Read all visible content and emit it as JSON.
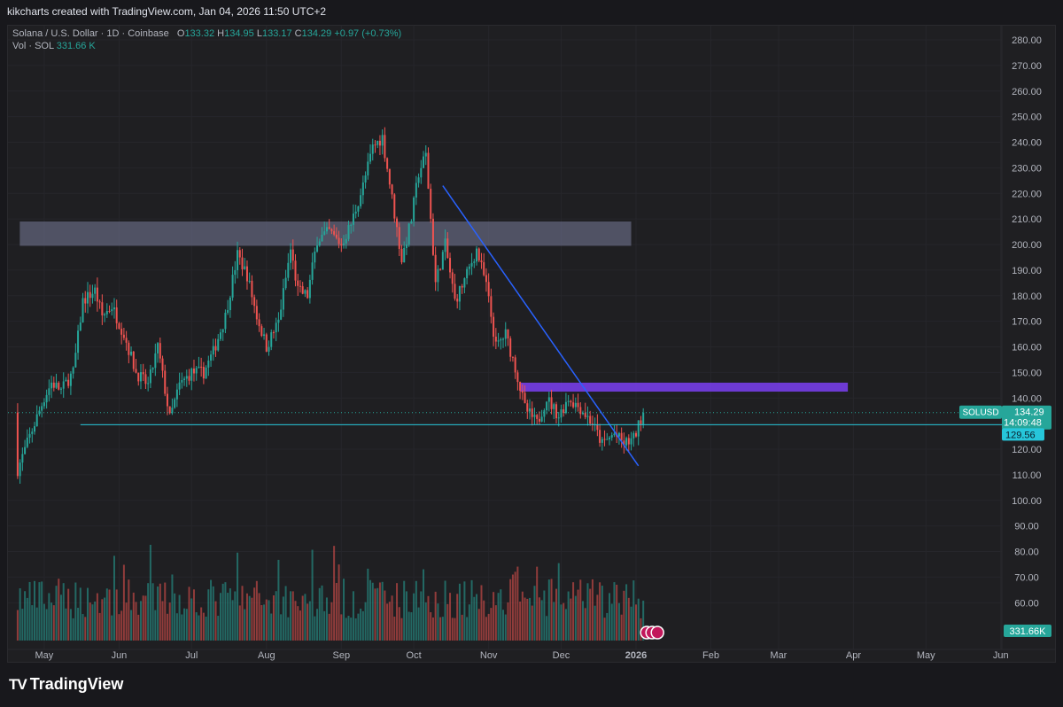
{
  "header": {
    "attribution": "kikcharts created with TradingView.com, Jan 04, 2026 11:50 UTC+2"
  },
  "legend": {
    "symbol": "Solana / U.S. Dollar · 1D · Coinbase",
    "open_label": "O",
    "open": "133.32",
    "high_label": "H",
    "high": "134.95",
    "low_label": "L",
    "low": "133.17",
    "close_label": "C",
    "close": "134.29",
    "change": "+0.97 (+0.73%)",
    "vol_label": "Vol · SOL",
    "vol_value": "331.66 K"
  },
  "footer": {
    "brand": "TradingView",
    "logo": "TV"
  },
  "chart_data": {
    "type": "candlestick",
    "symbol": "SOLUSD",
    "exchange": "Coinbase",
    "interval": "1D",
    "ylim": [
      50,
      285
    ],
    "y_ticks": [
      "280.00",
      "270.00",
      "260.00",
      "250.00",
      "240.00",
      "230.00",
      "220.00",
      "210.00",
      "200.00",
      "190.00",
      "180.00",
      "170.00",
      "160.00",
      "150.00",
      "140.00",
      "130.00",
      "120.00",
      "110.00",
      "100.00",
      "90.00",
      "80.00",
      "70.00",
      "60.00"
    ],
    "x_ticks": [
      "May",
      "Jun",
      "Jul",
      "Aug",
      "Sep",
      "Oct",
      "Nov",
      "Dec",
      "2026",
      "Feb",
      "Mar",
      "Apr",
      "May",
      "Jun"
    ],
    "price_path": [
      [
        "Apr 20",
        112
      ],
      [
        "Apr 25",
        125
      ],
      [
        "May 1",
        140
      ],
      [
        "May 4",
        146
      ],
      [
        "May 8",
        143
      ],
      [
        "May 13",
        150
      ],
      [
        "May 17",
        178
      ],
      [
        "May 22",
        182
      ],
      [
        "May 25",
        172
      ],
      [
        "May 29",
        176
      ],
      [
        "Jun 3",
        165
      ],
      [
        "Jun 8",
        150
      ],
      [
        "Jun 13",
        145
      ],
      [
        "Jun 17",
        160
      ],
      [
        "Jun 22",
        132
      ],
      [
        "Jun 26",
        145
      ],
      [
        "Jul 1",
        150
      ],
      [
        "Jul 6",
        150
      ],
      [
        "Jul 10",
        158
      ],
      [
        "Jul 15",
        172
      ],
      [
        "Jul 20",
        196
      ],
      [
        "Jul 24",
        188
      ],
      [
        "Jul 28",
        172
      ],
      [
        "Aug 1",
        160
      ],
      [
        "Aug 6",
        170
      ],
      [
        "Aug 11",
        198
      ],
      [
        "Aug 14",
        182
      ],
      [
        "Aug 18",
        180
      ],
      [
        "Aug 22",
        202
      ],
      [
        "Aug 27",
        205
      ],
      [
        "Sep 1",
        200
      ],
      [
        "Sep 5",
        208
      ],
      [
        "Sep 10",
        223
      ],
      [
        "Sep 14",
        238
      ],
      [
        "Sep 18",
        242
      ],
      [
        "Sep 22",
        218
      ],
      [
        "Sep 26",
        194
      ],
      [
        "Sep 30",
        210
      ],
      [
        "Oct 3",
        228
      ],
      [
        "Oct 6",
        235
      ],
      [
        "Oct 10",
        185
      ],
      [
        "Oct 14",
        200
      ],
      [
        "Oct 18",
        178
      ],
      [
        "Oct 22",
        186
      ],
      [
        "Oct 27",
        198
      ],
      [
        "Oct 31",
        184
      ],
      [
        "Nov 4",
        160
      ],
      [
        "Nov 8",
        165
      ],
      [
        "Nov 12",
        152
      ],
      [
        "Nov 16",
        136
      ],
      [
        "Nov 21",
        130
      ],
      [
        "Nov 25",
        140
      ],
      [
        "Nov 30",
        133
      ],
      [
        "Dec 4",
        140
      ],
      [
        "Dec 9",
        136
      ],
      [
        "Dec 14",
        130
      ],
      [
        "Dec 18",
        122
      ],
      [
        "Dec 23",
        126
      ],
      [
        "Dec 27",
        122
      ],
      [
        "Dec 31",
        124
      ],
      [
        "Jan 4",
        134.29
      ]
    ],
    "price_labels": [
      {
        "name": "SOLUSD",
        "value": "134.29",
        "countdown": "14:09:48",
        "color": "#26a69a"
      },
      {
        "value": "129.56",
        "color": "#26c6da"
      }
    ],
    "volume_label": "331.66K",
    "annotations": {
      "resistance_zone": {
        "y_range": [
          199.5,
          209
        ],
        "x_range": [
          "Apr 22",
          "Dec 30"
        ]
      },
      "supply_zone": {
        "y_range": [
          142.5,
          146
        ],
        "x_range": [
          "Nov 14",
          "Apr 1"
        ]
      },
      "downtrend_line": {
        "from": [
          "Oct 13",
          223
        ],
        "to": [
          "Jan 2",
          113.5
        ]
      },
      "horizontal_line": {
        "y": 129.56,
        "from": "May 16"
      }
    },
    "colors": {
      "up": "#26a69a",
      "down": "#ef5350",
      "trend": "#2962ff",
      "level": "#26c6da",
      "zone_resist": "#787b9a",
      "zone_supply": "#7b3ff2"
    },
    "grid": true
  }
}
